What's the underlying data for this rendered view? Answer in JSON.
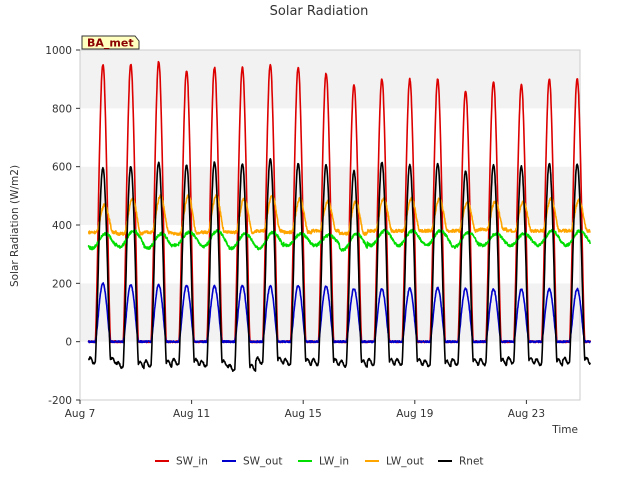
{
  "chart_data": {
    "type": "line",
    "title": "Solar Radiation",
    "xlabel": "Time",
    "ylabel": "Solar Radiation (W/m2)",
    "site_badge": "BA_met",
    "ylim": [
      -200,
      1000
    ],
    "yticks": [
      -200,
      0,
      200,
      400,
      600,
      800,
      1000
    ],
    "xlim": [
      "2024-08-07",
      "2024-08-25"
    ],
    "xticks": [
      {
        "date": "2024-08-07",
        "label": "Aug 7"
      },
      {
        "date": "2024-08-11",
        "label": "Aug 11"
      },
      {
        "date": "2024-08-15",
        "label": "Aug 15"
      },
      {
        "date": "2024-08-19",
        "label": "Aug 19"
      },
      {
        "date": "2024-08-23",
        "label": "Aug 23"
      }
    ],
    "grid": "horizontal bands",
    "legend_position": "bottom",
    "days": [
      "Aug 7",
      "Aug 8",
      "Aug 9",
      "Aug 10",
      "Aug 11",
      "Aug 12",
      "Aug 13",
      "Aug 14",
      "Aug 15",
      "Aug 16",
      "Aug 17",
      "Aug 18",
      "Aug 19",
      "Aug 20",
      "Aug 21",
      "Aug 22",
      "Aug 23",
      "Aug 24"
    ],
    "series": [
      {
        "name": "SW_in",
        "color": "#dd0000",
        "daily_min": [
          0,
          0,
          0,
          0,
          0,
          0,
          0,
          0,
          0,
          0,
          0,
          0,
          0,
          0,
          0,
          0,
          0,
          0
        ],
        "daily_peak": [
          950,
          950,
          960,
          930,
          940,
          940,
          950,
          940,
          920,
          880,
          900,
          900,
          900,
          860,
          890,
          880,
          900,
          900
        ]
      },
      {
        "name": "SW_out",
        "color": "#0000cc",
        "daily_min": [
          0,
          0,
          0,
          0,
          0,
          0,
          0,
          0,
          0,
          0,
          0,
          0,
          0,
          0,
          0,
          0,
          0,
          0
        ],
        "daily_peak": [
          200,
          195,
          195,
          192,
          190,
          192,
          190,
          192,
          190,
          182,
          180,
          182,
          185,
          182,
          180,
          180,
          180,
          180
        ]
      },
      {
        "name": "LW_in",
        "color": "#00dd00",
        "daily_min": [
          320,
          325,
          320,
          330,
          325,
          320,
          320,
          330,
          330,
          315,
          330,
          330,
          330,
          325,
          330,
          330,
          330,
          330
        ],
        "daily_peak": [
          370,
          380,
          370,
          375,
          380,
          370,
          375,
          370,
          365,
          370,
          380,
          380,
          380,
          375,
          370,
          370,
          380,
          380
        ]
      },
      {
        "name": "LW_out",
        "color": "#ffa500",
        "daily_min": [
          375,
          370,
          375,
          370,
          375,
          375,
          380,
          375,
          380,
          370,
          380,
          380,
          380,
          380,
          385,
          380,
          380,
          380
        ],
        "daily_peak": [
          470,
          490,
          500,
          500,
          500,
          490,
          500,
          490,
          480,
          480,
          490,
          490,
          490,
          480,
          480,
          480,
          490,
          485
        ]
      },
      {
        "name": "Rnet",
        "color": "#000000",
        "daily_min": [
          -65,
          -80,
          -75,
          -70,
          -75,
          -90,
          -65,
          -70,
          -70,
          -75,
          -70,
          -70,
          -75,
          -70,
          -70,
          -65,
          -70,
          -65
        ],
        "daily_peak": [
          595,
          600,
          615,
          605,
          615,
          610,
          625,
          610,
          605,
          585,
          615,
          605,
          610,
          585,
          605,
          600,
          610,
          610
        ]
      }
    ]
  }
}
